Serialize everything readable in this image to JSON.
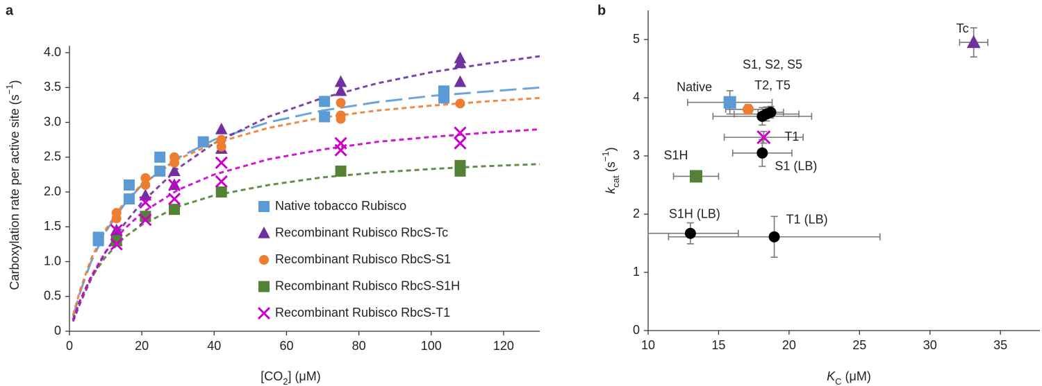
{
  "chart_data": [
    {
      "type": "scatter",
      "panel_label": "a",
      "x_label_parts": [
        "[CO",
        "2",
        "] (μM)"
      ],
      "y_label_parts": [
        "Carboxylation rate per active site (s",
        "−1",
        ")"
      ],
      "xlim": [
        0,
        130
      ],
      "xticks": [
        0,
        20,
        40,
        60,
        80,
        100,
        120
      ],
      "ylim": [
        0,
        4.1
      ],
      "yticks": [
        0,
        0.5,
        {
          "value": 1,
          "label": "1.0"
        },
        1.5,
        {
          "value": 2,
          "label": "2.0"
        },
        2.5,
        {
          "value": 3,
          "label": "3.0"
        },
        3.5,
        {
          "value": 4,
          "label": "4.0"
        }
      ],
      "legend": "lower right",
      "fit_x": [
        1,
        3,
        6,
        10,
        15,
        20,
        30,
        40,
        55,
        70,
        85,
        100,
        115,
        130
      ],
      "series": [
        {
          "name": "Native tobacco Rubisco",
          "color": "#5b9bd5",
          "marker": "square",
          "line_style": "long-dash",
          "x": [
            8,
            8,
            16.5,
            16.5,
            25,
            25,
            37,
            70.5,
            70.5,
            103.5,
            103.5
          ],
          "values": [
            1.3,
            1.35,
            1.9,
            2.1,
            2.3,
            2.5,
            2.72,
            3.08,
            3.3,
            3.35,
            3.45
          ],
          "fit_values": [
            0.21,
            0.57,
            1.0,
            1.43,
            1.81,
            2.1,
            2.49,
            2.75,
            3.0,
            3.17,
            3.29,
            3.38,
            3.44,
            3.5
          ]
        },
        {
          "name": "Recombinant Rubisco RbcS-Tc",
          "color": "#7030a0",
          "marker": "triangle",
          "line_style": "dash",
          "x": [
            13,
            13,
            21,
            29,
            29,
            42,
            42,
            75,
            75,
            108,
            108,
            108
          ],
          "values": [
            1.3,
            1.45,
            1.95,
            2.3,
            2.1,
            2.9,
            2.62,
            3.58,
            3.45,
            3.92,
            3.85,
            3.58
          ],
          "fit_values": [
            0.14,
            0.41,
            0.75,
            1.14,
            1.53,
            1.85,
            2.34,
            2.7,
            3.08,
            3.35,
            3.56,
            3.72,
            3.84,
            3.95
          ]
        },
        {
          "name": "Recombinant Rubisco RbcS-S1",
          "color": "#ed7d31",
          "marker": "circle",
          "line_style": "dash",
          "x": [
            13,
            13,
            21,
            21,
            29,
            29,
            42,
            42,
            75,
            75,
            75,
            108
          ],
          "values": [
            1.7,
            1.62,
            2.2,
            2.1,
            2.5,
            2.42,
            2.75,
            2.65,
            3.1,
            3.05,
            3.28,
            3.27
          ],
          "fit_values": [
            0.23,
            0.6,
            1.04,
            1.46,
            1.84,
            2.11,
            2.47,
            2.7,
            2.92,
            3.07,
            3.17,
            3.24,
            3.3,
            3.35
          ]
        },
        {
          "name": "Recombinant Rubisco RbcS-S1H",
          "color": "#548235",
          "marker": "square",
          "line_style": "dash",
          "x": [
            13,
            21,
            29,
            42,
            75,
            108,
            108
          ],
          "values": [
            1.3,
            1.65,
            1.75,
            2.0,
            2.3,
            2.38,
            2.3
          ],
          "fit_values": [
            0.17,
            0.45,
            0.77,
            1.07,
            1.34,
            1.53,
            1.79,
            1.95,
            2.1,
            2.21,
            2.28,
            2.33,
            2.37,
            2.4
          ]
        },
        {
          "name": "Recombinant Rubisco RbcS-T1",
          "color": "#cc00cc",
          "marker": "cross",
          "line_style": "dash",
          "x": [
            13,
            13,
            21,
            21,
            29,
            29,
            42,
            42,
            75,
            75,
            108,
            108
          ],
          "values": [
            1.45,
            1.25,
            1.85,
            1.6,
            2.1,
            1.9,
            2.42,
            2.15,
            2.7,
            2.6,
            2.85,
            2.7
          ],
          "fit_values": [
            0.16,
            0.45,
            0.79,
            1.14,
            1.46,
            1.7,
            2.03,
            2.25,
            2.47,
            2.61,
            2.72,
            2.79,
            2.85,
            2.9
          ]
        }
      ]
    },
    {
      "type": "errorbar-scatter",
      "panel_label": "b",
      "x_label_parts": [
        "K",
        "C",
        " (μM)"
      ],
      "y_label_parts": [
        "k",
        "cat",
        " (s",
        "−1",
        ")"
      ],
      "xlim": [
        10,
        37.8
      ],
      "xticks": [
        10,
        15,
        20,
        25,
        30,
        35
      ],
      "ylim": [
        0,
        5.5
      ],
      "yticks": [
        0,
        1,
        2,
        3,
        4,
        5
      ],
      "annotations": [
        "S1, S2, S5",
        "T2, T5"
      ],
      "points": [
        {
          "label": "Native",
          "color": "#5b9bd5",
          "marker": "square",
          "x": 15.8,
          "y": 3.92,
          "xerr": 3.0,
          "yerr": 0.2
        },
        {
          "color": "#ed7d31",
          "marker": "circle",
          "x": 17.1,
          "y": 3.8,
          "xerr": 1.6,
          "yerr": 0.08
        },
        {
          "color": "#000000",
          "marker": "circle",
          "x": 18.1,
          "y": 3.68,
          "xerr": 3.5,
          "yerr": 0.15
        },
        {
          "color": "#000000",
          "marker": "circle",
          "x": 18.4,
          "y": 3.72,
          "xerr": 2.3,
          "yerr": 0.12
        },
        {
          "color": "#000000",
          "marker": "circle",
          "x": 18.7,
          "y": 3.75,
          "xerr": 0.9,
          "yerr": 0.1
        },
        {
          "label": "T1",
          "color": "#cc00cc",
          "marker": "cross",
          "x": 18.2,
          "y": 3.32,
          "xerr": 2.8,
          "yerr": 0.1
        },
        {
          "label": "S1 (LB)",
          "color": "#000000",
          "marker": "circle",
          "x": 18.1,
          "y": 3.05,
          "xerr": 2.1,
          "yerr": 0.23
        },
        {
          "label": "S1H",
          "color": "#548235",
          "marker": "square",
          "x": 13.4,
          "y": 2.65,
          "xerr": 1.6,
          "yerr": 0.05
        },
        {
          "label": "Tc",
          "color": "#7030a0",
          "marker": "triangle",
          "x": 33.1,
          "y": 4.95,
          "xerr": 1.0,
          "yerr": 0.25
        },
        {
          "label": "S1H (LB)",
          "color": "#000000",
          "marker": "circle",
          "x": 13.0,
          "y": 1.67,
          "xerr": 3.4,
          "yerr": 0.18
        },
        {
          "label": "T1 (LB)",
          "color": "#000000",
          "marker": "circle",
          "x": 18.95,
          "y": 1.61,
          "xerr": 7.5,
          "yerr": 0.35
        }
      ]
    }
  ]
}
